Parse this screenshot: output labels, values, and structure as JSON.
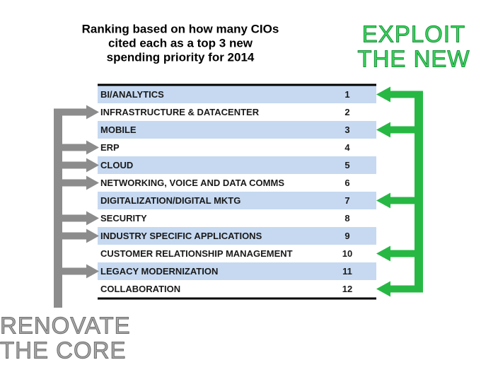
{
  "header": {
    "title_lines": [
      "Ranking based on how many CIOs",
      "cited each as a top 3 new",
      "spending priority for 2014"
    ]
  },
  "table": {
    "rows": [
      [
        "BI/ANALYTICS",
        1
      ],
      [
        "INFRASTRUCTURE & DATACENTER",
        2
      ],
      [
        "MOBILE",
        3
      ],
      [
        "ERP",
        4
      ],
      [
        "CLOUD",
        5
      ],
      [
        "NETWORKING, VOICE AND DATA COMMS",
        6
      ],
      [
        "DIGITALIZATION/DIGITAL MKTG",
        7
      ],
      [
        "SECURITY",
        8
      ],
      [
        "INDUSTRY SPECIFIC APPLICATIONS",
        9
      ],
      [
        "CUSTOMER RELATIONSHIP MANAGEMENT",
        10
      ],
      [
        "LEGACY MODERNIZATION",
        11
      ],
      [
        "COLLABORATION",
        12
      ]
    ]
  },
  "exploit_label": [
    "EXPLOIT",
    "THE NEW"
  ],
  "renovate_label": [
    "RENOVATE",
    "THE CORE"
  ]
}
